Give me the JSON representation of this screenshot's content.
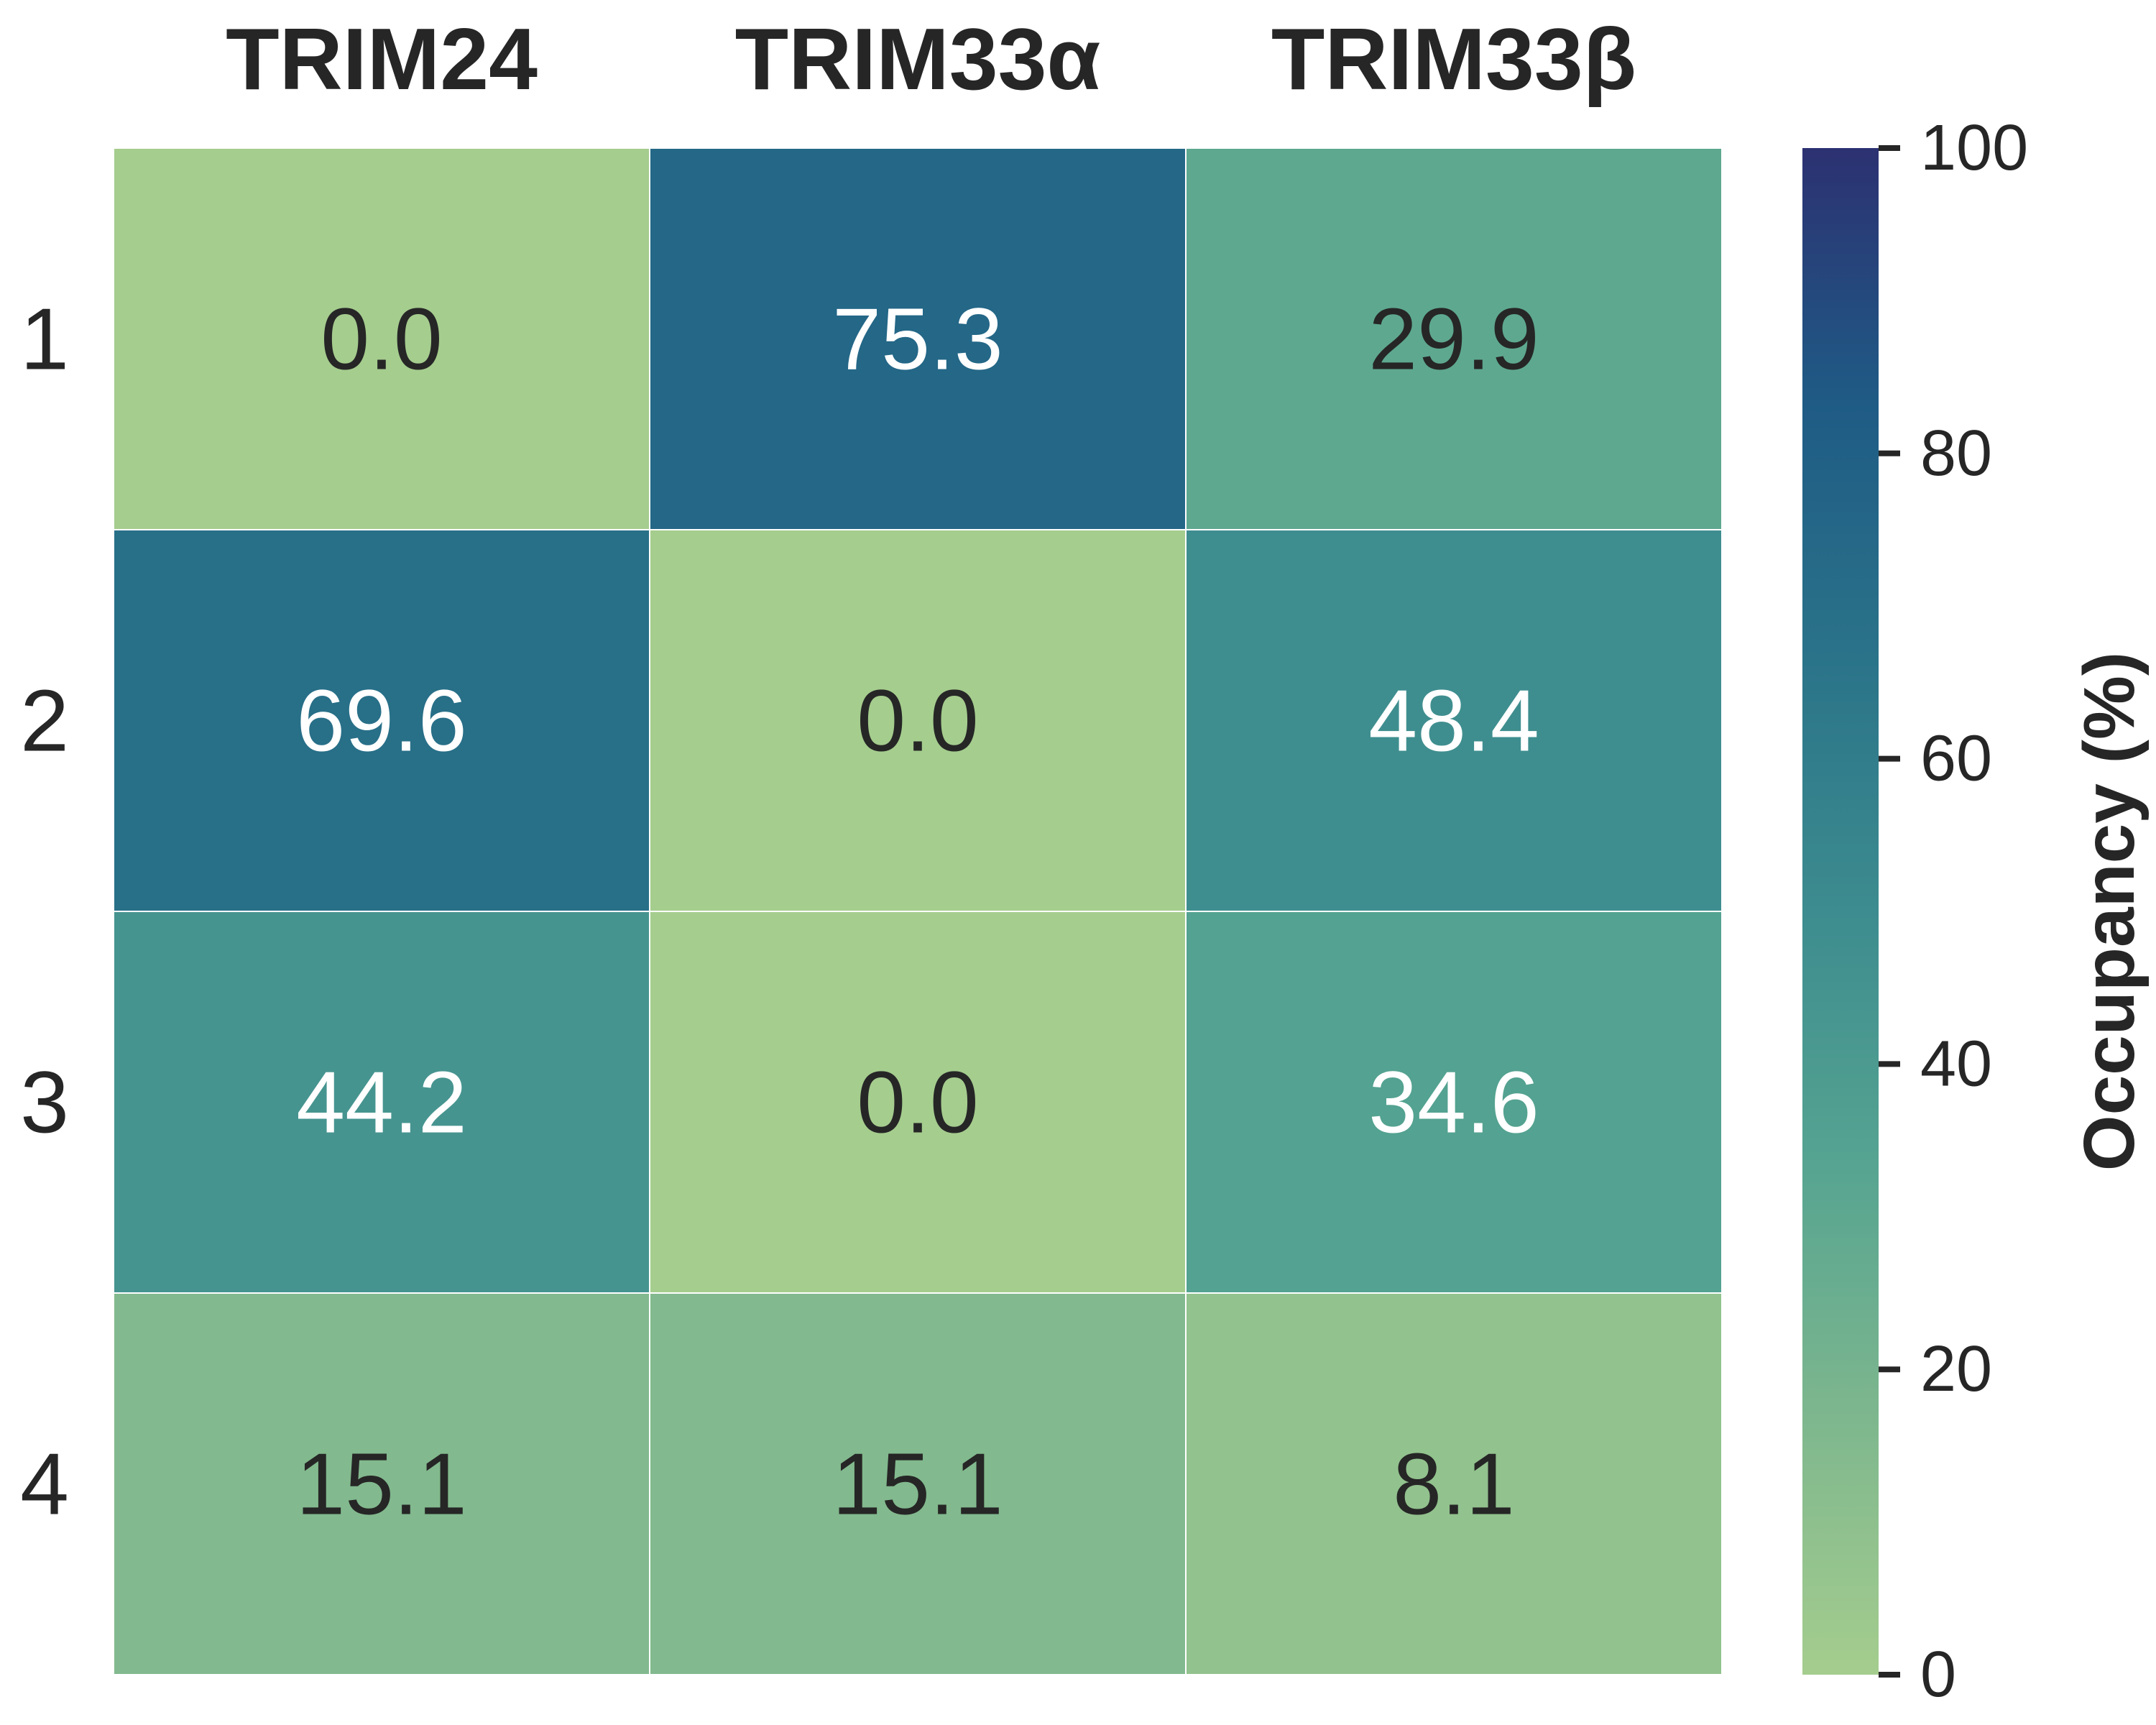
{
  "chart_data": {
    "type": "heatmap",
    "title": "",
    "xlabel": "",
    "ylabel": "",
    "columns": [
      "TRIM24",
      "TRIM33α",
      "TRIM33β"
    ],
    "rows": [
      "1",
      "2",
      "3",
      "4"
    ],
    "values": [
      [
        0.0,
        75.3,
        29.9
      ],
      [
        69.6,
        0.0,
        48.4
      ],
      [
        44.2,
        0.0,
        34.6
      ],
      [
        15.1,
        15.1,
        8.1
      ]
    ],
    "value_labels": [
      [
        "0.0",
        "75.3",
        "29.9"
      ],
      [
        "69.6",
        "0.0",
        "48.4"
      ],
      [
        "44.2",
        "0.0",
        "34.6"
      ],
      [
        "15.1",
        "15.1",
        "8.1"
      ]
    ],
    "x_axis_position": "top",
    "colorbar": {
      "label": "Occupancy (%)",
      "range": [
        0,
        100
      ],
      "ticks": [
        0,
        20,
        40,
        60,
        80,
        100
      ],
      "tick_labels": [
        "0",
        "20",
        "40",
        "60",
        "80",
        "100"
      ],
      "position": "right"
    },
    "colormap": "crest",
    "colormap_stops": [
      "#a5cd8e",
      "#7eb78e",
      "#56a491",
      "#3d8c8f",
      "#2a7389",
      "#1f5b85",
      "#2c3172"
    ],
    "grid": false
  }
}
